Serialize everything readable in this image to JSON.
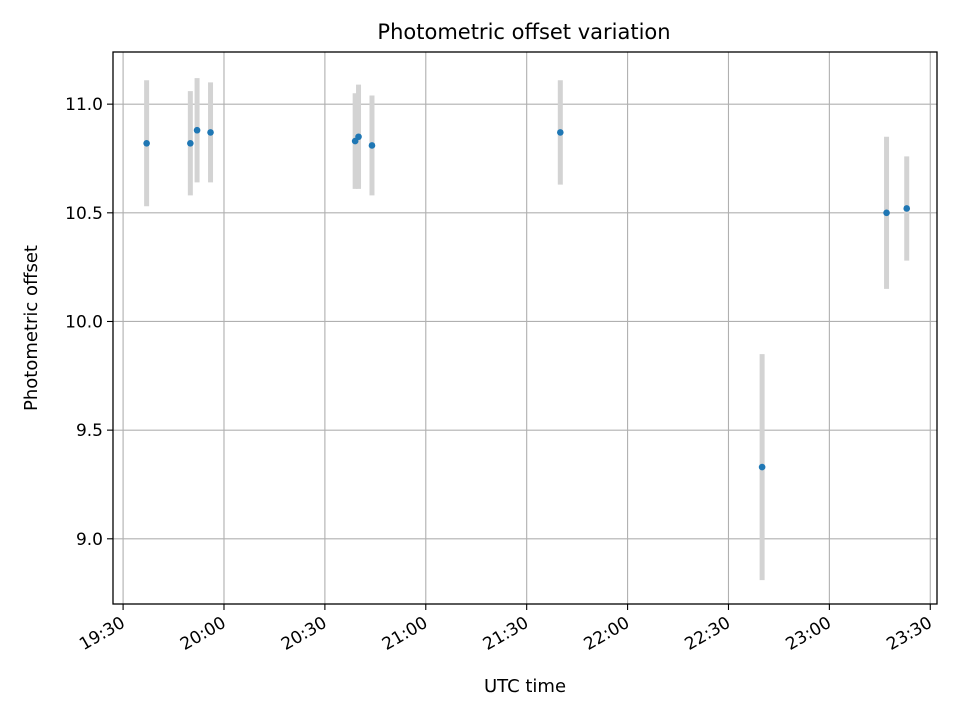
{
  "chart_data": {
    "type": "scatter",
    "title": "Photometric offset variation",
    "xlabel": "UTC time",
    "ylabel": "Photometric offset",
    "x_ticks": [
      "19:30",
      "20:00",
      "20:30",
      "21:00",
      "21:30",
      "22:00",
      "22:30",
      "23:00",
      "23:30"
    ],
    "y_ticks": [
      "9.0",
      "9.5",
      "10.0",
      "10.5",
      "11.0"
    ],
    "xlim": [
      "19:27",
      "23:32"
    ],
    "ylim": [
      8.7,
      11.24
    ],
    "grid": true,
    "colors": {
      "point": "#1f77b4",
      "errorbar": "#d3d3d3",
      "grid": "#b0b0b0"
    },
    "points": [
      {
        "t": "19:37",
        "y": 10.82,
        "err": 0.29
      },
      {
        "t": "19:50",
        "y": 10.82,
        "err": 0.24
      },
      {
        "t": "19:52",
        "y": 10.88,
        "err": 0.24
      },
      {
        "t": "19:56",
        "y": 10.87,
        "err": 0.23
      },
      {
        "t": "20:39",
        "y": 10.83,
        "err": 0.22
      },
      {
        "t": "20:40",
        "y": 10.85,
        "err": 0.24
      },
      {
        "t": "20:44",
        "y": 10.81,
        "err": 0.23
      },
      {
        "t": "21:40",
        "y": 10.87,
        "err": 0.24
      },
      {
        "t": "22:40",
        "y": 9.33,
        "err": 0.52
      },
      {
        "t": "23:17",
        "y": 10.5,
        "err": 0.35
      },
      {
        "t": "23:23",
        "y": 10.52,
        "err": 0.24
      }
    ]
  }
}
